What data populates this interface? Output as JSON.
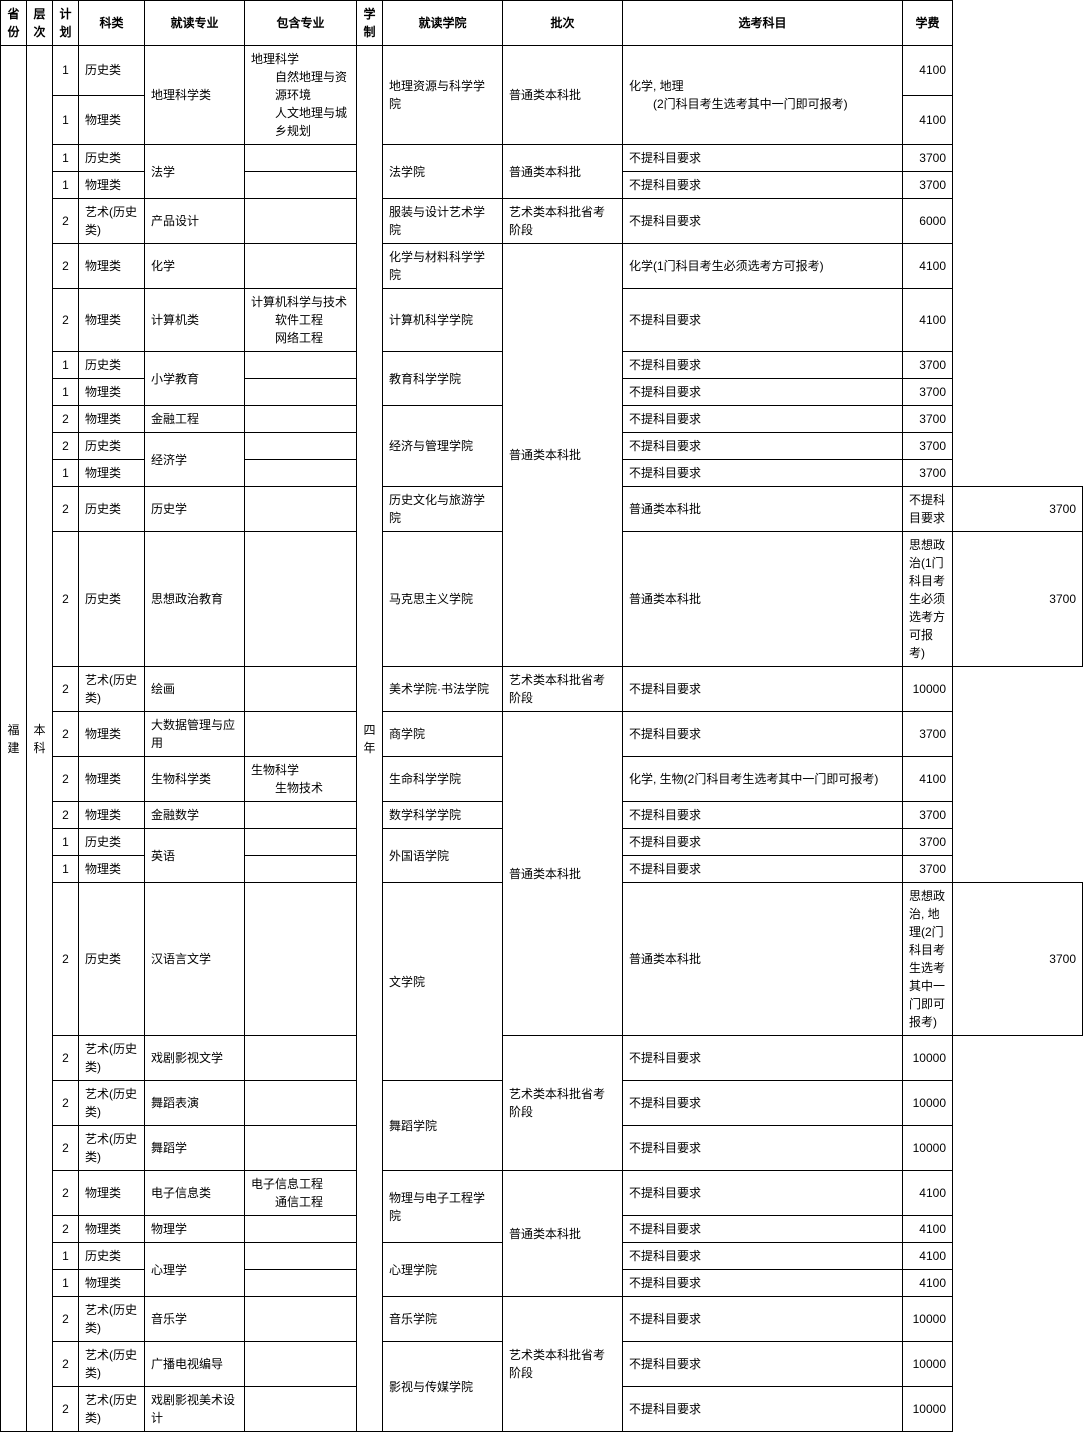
{
  "headers": [
    "省份",
    "层次",
    "计划",
    "科类",
    "就读专业",
    "包含专业",
    "学制",
    "就读学院",
    "批次",
    "选考科目",
    "学费"
  ],
  "province": "福建",
  "level": "本科",
  "duration": "四年",
  "rows": [
    {
      "plan": "1",
      "cat": "历史类",
      "major_rs": 2,
      "major": "地理科学类",
      "incl_rs": 2,
      "incl": "地理科学\n　自然地理与资源环境\n　人文地理与城乡规划",
      "college_rs": 2,
      "college": "地理资源与科学学院",
      "batch_rs": 2,
      "batch": "普通类本科批",
      "subj_rs": 2,
      "subj": "化学, 地理\n　(2门科目考生选考其中一门即可报考)",
      "fee": "4100"
    },
    {
      "plan": "1",
      "cat": "物理类",
      "fee": "4100"
    },
    {
      "plan": "1",
      "cat": "历史类",
      "major_rs": 2,
      "major": "法学",
      "incl": "",
      "college_rs": 2,
      "college": "法学院",
      "batch_rs": 2,
      "batch": "普通类本科批",
      "subj": "不提科目要求",
      "fee": "3700"
    },
    {
      "plan": "1",
      "cat": "物理类",
      "incl": "",
      "subj": "不提科目要求",
      "fee": "3700"
    },
    {
      "plan": "2",
      "cat": "艺术(历史类)",
      "major": "产品设计",
      "incl": "",
      "college": "服装与设计艺术学院",
      "batch": "艺术类本科批省考阶段",
      "subj": "不提科目要求",
      "fee": "6000"
    },
    {
      "plan": "2",
      "cat": "物理类",
      "major": "化学",
      "incl": "",
      "college": "化学与材料科学学院",
      "batch_rs": 9,
      "batch": "普通类本科批",
      "subj": "化学(1门科目考生必须选考方可报考)",
      "fee": "4100"
    },
    {
      "plan": "2",
      "cat": "物理类",
      "major": "计算机类",
      "incl": "计算机科学与技术\n　软件工程\n　网络工程",
      "college": "计算机科学学院",
      "subj": "不提科目要求",
      "fee": "4100"
    },
    {
      "plan": "1",
      "cat": "历史类",
      "major_rs": 2,
      "major": "小学教育",
      "incl": "",
      "college_rs": 2,
      "college": "教育科学学院",
      "subj": "不提科目要求",
      "fee": "3700"
    },
    {
      "plan": "1",
      "cat": "物理类",
      "incl": "",
      "subj": "不提科目要求",
      "fee": "3700"
    },
    {
      "plan": "2",
      "cat": "物理类",
      "major": "金融工程",
      "incl": "",
      "college_rs": 3,
      "college": "经济与管理学院",
      "subj": "不提科目要求",
      "fee": "3700"
    },
    {
      "plan": "2",
      "cat": "历史类",
      "major_rs": 2,
      "major": "经济学",
      "incl": "",
      "subj": "不提科目要求",
      "fee": "3700"
    },
    {
      "plan": "1",
      "cat": "物理类",
      "incl": "",
      "subj": "不提科目要求",
      "fee": "3700"
    },
    {
      "plan": "2",
      "cat": "历史类",
      "major": "历史学",
      "incl": "",
      "college": "历史文化与旅游学院",
      "batch": "普通类本科批",
      "subj": "不提科目要求",
      "fee": "3700"
    },
    {
      "plan": "2",
      "cat": "历史类",
      "major": "思想政治教育",
      "incl": "",
      "college": "马克思主义学院",
      "batch": "普通类本科批",
      "subj": "思想政治(1门科目考生必须选考方可报考)",
      "fee": "3700"
    },
    {
      "plan": "2",
      "cat": "艺术(历史类)",
      "major": "绘画",
      "incl": "",
      "college": "美术学院·书法学院",
      "batch": "艺术类本科批省考阶段",
      "subj": "不提科目要求",
      "fee": "10000"
    },
    {
      "plan": "2",
      "cat": "物理类",
      "major": "大数据管理与应用",
      "incl": "",
      "college": "商学院",
      "batch_rs": 6,
      "batch": "普通类本科批",
      "subj": "不提科目要求",
      "fee": "3700"
    },
    {
      "plan": "2",
      "cat": "物理类",
      "major": "生物科学类",
      "incl": "生物科学\n　生物技术",
      "college": "生命科学学院",
      "subj": "化学, 生物(2门科目考生选考其中一门即可报考)",
      "fee": "4100"
    },
    {
      "plan": "2",
      "cat": "物理类",
      "major": "金融数学",
      "incl": "",
      "college": "数学科学学院",
      "subj": "不提科目要求",
      "fee": "3700"
    },
    {
      "plan": "1",
      "cat": "历史类",
      "major_rs": 2,
      "major": "英语",
      "incl": "",
      "college_rs": 2,
      "college": "外国语学院",
      "subj": "不提科目要求",
      "fee": "3700"
    },
    {
      "plan": "1",
      "cat": "物理类",
      "incl": "",
      "subj": "不提科目要求",
      "fee": "3700"
    },
    {
      "plan": "2",
      "cat": "历史类",
      "major": "汉语言文学",
      "incl": "",
      "college_rs": 2,
      "college": "文学院",
      "batch": "普通类本科批",
      "subj": "思想政治, 地理(2门科目考生选考其中一门即可报考)",
      "fee": "3700"
    },
    {
      "plan": "2",
      "cat": "艺术(历史类)",
      "major": "戏剧影视文学",
      "incl": "",
      "batch_rs": 3,
      "batch": "艺术类本科批省考阶段",
      "subj": "不提科目要求",
      "fee": "10000"
    },
    {
      "plan": "2",
      "cat": "艺术(历史类)",
      "major": "舞蹈表演",
      "incl": "",
      "college_rs": 2,
      "college": "舞蹈学院",
      "subj": "不提科目要求",
      "fee": "10000"
    },
    {
      "plan": "2",
      "cat": "艺术(历史类)",
      "major": "舞蹈学",
      "incl": "",
      "subj": "不提科目要求",
      "fee": "10000"
    },
    {
      "plan": "2",
      "cat": "物理类",
      "major": "电子信息类",
      "incl": "电子信息工程\n　通信工程",
      "college_rs": 2,
      "college": "物理与电子工程学院",
      "batch_rs": 4,
      "batch": "普通类本科批",
      "subj": "不提科目要求",
      "fee": "4100"
    },
    {
      "plan": "2",
      "cat": "物理类",
      "major": "物理学",
      "incl": "",
      "subj": "不提科目要求",
      "fee": "4100"
    },
    {
      "plan": "1",
      "cat": "历史类",
      "major_rs": 2,
      "major": "心理学",
      "incl": "",
      "college_rs": 2,
      "college": "心理学院",
      "subj": "不提科目要求",
      "fee": "4100"
    },
    {
      "plan": "1",
      "cat": "物理类",
      "incl": "",
      "subj": "不提科目要求",
      "fee": "4100"
    },
    {
      "plan": "2",
      "cat": "艺术(历史类)",
      "major": "音乐学",
      "incl": "",
      "college": "音乐学院",
      "batch_rs": 3,
      "batch": "艺术类本科批省考阶段",
      "subj": "不提科目要求",
      "fee": "10000"
    },
    {
      "plan": "2",
      "cat": "艺术(历史类)",
      "major": "广播电视编导",
      "incl": "",
      "college_rs": 2,
      "college": "影视与传媒学院",
      "subj": "不提科目要求",
      "fee": "10000"
    },
    {
      "plan": "2",
      "cat": "艺术(历史类)",
      "major": "戏剧影视美术设计",
      "incl": "",
      "subj": "不提科目要求",
      "fee": "10000"
    }
  ],
  "style": {
    "border_color": "#000000",
    "background": "#ffffff",
    "font_size": 12,
    "header_weight": "bold",
    "rowcount": 31
  }
}
